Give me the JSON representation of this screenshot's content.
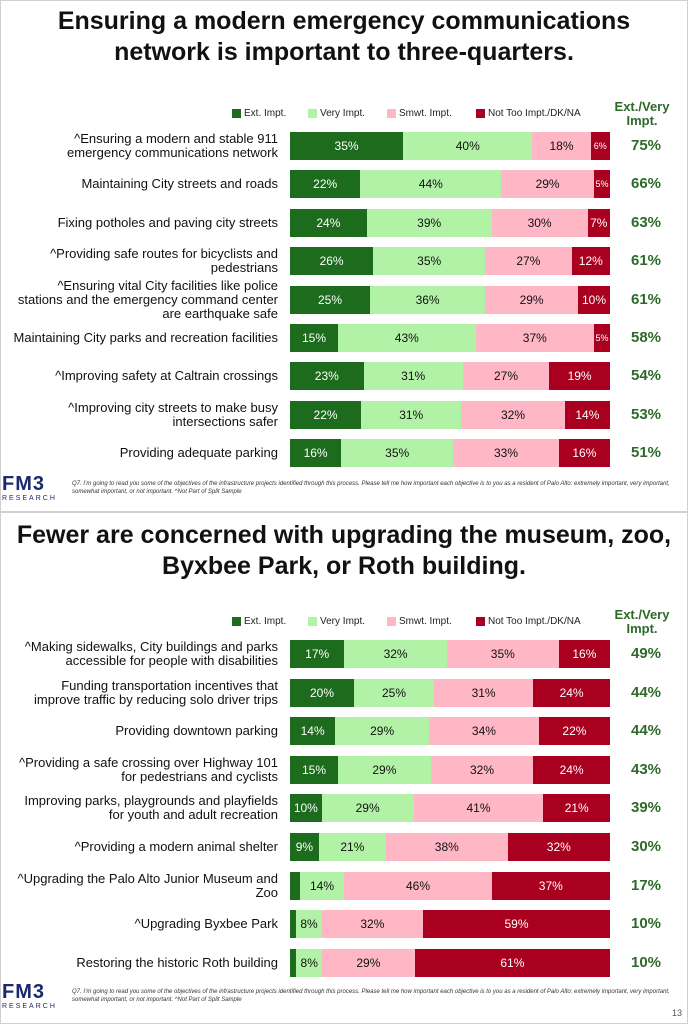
{
  "colors": {
    "ext": "#1d6b1d",
    "very": "#b2f2a6",
    "smwt": "#ffb6c5",
    "not": "#a8001e",
    "green_text": "#2d6a2a"
  },
  "legend": {
    "ext": "Ext. Impt.",
    "very": "Very Impt.",
    "smwt": "Smwt. Impt.",
    "not": "Not Too Impt./DK/NA"
  },
  "ext_very_header": "Ext./Very Impt.",
  "logo": {
    "name": "FM3",
    "tagline": "RESEARCH"
  },
  "footnote": "Q7. I’m going to read you some of the objectives of the infrastructure projects identified through this process.  Please tell me how important each objective is to you as a resident of Palo Alto: extremely important, very important, somewhat important, or not important. ^Not Part of Split Sample",
  "chart_data": [
    {
      "type": "bar",
      "stacked": true,
      "orientation": "horizontal",
      "title": "Ensuring a modern emergency communications network is important to three-quarters.",
      "page_number": "",
      "series_names": [
        "Ext. Impt.",
        "Very Impt.",
        "Smwt. Impt.",
        "Not Too Impt./DK/NA"
      ],
      "rows": [
        {
          "label": "^Ensuring a modern and stable 911 emergency communications network",
          "values": [
            35,
            40,
            18,
            6
          ],
          "ext_very": "75%"
        },
        {
          "label": "Maintaining City streets and roads",
          "values": [
            22,
            44,
            29,
            5
          ],
          "ext_very": "66%"
        },
        {
          "label": "Fixing potholes and paving city streets",
          "values": [
            24,
            39,
            30,
            7
          ],
          "ext_very": "63%"
        },
        {
          "label": "^Providing safe routes for bicyclists and pedestrians",
          "values": [
            26,
            35,
            27,
            12
          ],
          "ext_very": "61%"
        },
        {
          "label": "^Ensuring vital City facilities like police stations and the emergency command center are earthquake safe",
          "values": [
            25,
            36,
            29,
            10
          ],
          "ext_very": "61%"
        },
        {
          "label": "Maintaining City parks and recreation facilities",
          "values": [
            15,
            43,
            37,
            5
          ],
          "ext_very": "58%"
        },
        {
          "label": "^Improving safety at Caltrain crossings",
          "values": [
            23,
            31,
            27,
            19
          ],
          "ext_very": "54%"
        },
        {
          "label": "^Improving city streets to make busy intersections safer",
          "values": [
            22,
            31,
            32,
            14
          ],
          "ext_very": "53%"
        },
        {
          "label": "Providing adequate parking",
          "values": [
            16,
            35,
            33,
            16
          ],
          "ext_very": "51%"
        }
      ]
    },
    {
      "type": "bar",
      "stacked": true,
      "orientation": "horizontal",
      "title": "Fewer are concerned with upgrading the museum, zoo, Byxbee Park, or Roth building.",
      "page_number": "13",
      "series_names": [
        "Ext. Impt.",
        "Very Impt.",
        "Smwt. Impt.",
        "Not Too Impt./DK/NA"
      ],
      "rows": [
        {
          "label": "^Making sidewalks, City buildings and parks accessible for people with disabilities",
          "values": [
            17,
            32,
            35,
            16
          ],
          "ext_very": "49%"
        },
        {
          "label": "Funding transportation incentives that improve traffic by reducing solo driver trips",
          "values": [
            20,
            25,
            31,
            24
          ],
          "ext_very": "44%"
        },
        {
          "label": "Providing downtown parking",
          "values": [
            14,
            29,
            34,
            22
          ],
          "ext_very": "44%"
        },
        {
          "label": "^Providing a safe crossing over Highway 101 for pedestrians and cyclists",
          "values": [
            15,
            29,
            32,
            24
          ],
          "ext_very": "43%"
        },
        {
          "label": "Improving parks, playgrounds and playfields for youth and adult recreation",
          "values": [
            10,
            29,
            41,
            21
          ],
          "ext_very": "39%"
        },
        {
          "label": "^Providing a modern animal shelter",
          "values": [
            9,
            21,
            38,
            32
          ],
          "ext_very": "30%"
        },
        {
          "label": "^Upgrading the Palo Alto Junior Museum and Zoo",
          "values": [
            3,
            14,
            46,
            37
          ],
          "ext_very": "17%",
          "hide_labels": [
            0
          ]
        },
        {
          "label": "^Upgrading Byxbee Park",
          "values": [
            2,
            8,
            32,
            59
          ],
          "ext_very": "10%",
          "hide_labels": [
            0
          ]
        },
        {
          "label": "Restoring the historic Roth building",
          "values": [
            2,
            8,
            29,
            61
          ],
          "ext_very": "10%",
          "hide_labels": [
            0
          ]
        }
      ]
    }
  ]
}
